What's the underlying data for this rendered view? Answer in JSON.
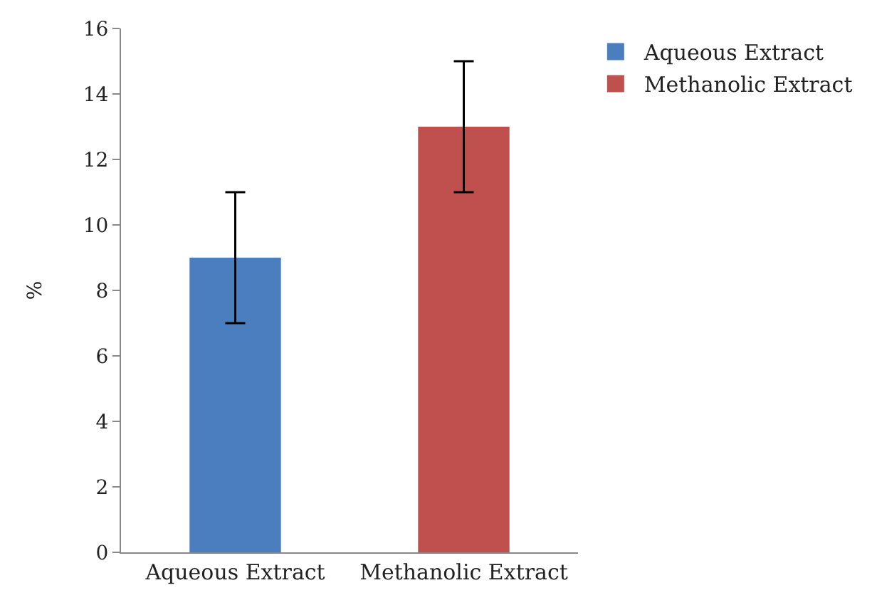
{
  "chart_data": {
    "type": "bar",
    "ylabel": "%",
    "categories": [
      "Aqueous Extract",
      "Methanolic Extract"
    ],
    "series": [
      {
        "name": "Aqueous Extract",
        "color": "#4a7ebf",
        "values": [
          9,
          null
        ],
        "errors": [
          2,
          null
        ]
      },
      {
        "name": "Methanolic Extract",
        "color": "#c0504d",
        "values": [
          null,
          13
        ],
        "errors": [
          null,
          2
        ]
      }
    ],
    "ylim": [
      0,
      16
    ],
    "yticks": [
      0,
      2,
      4,
      6,
      8,
      10,
      12,
      14,
      16
    ],
    "legend": "top right"
  }
}
